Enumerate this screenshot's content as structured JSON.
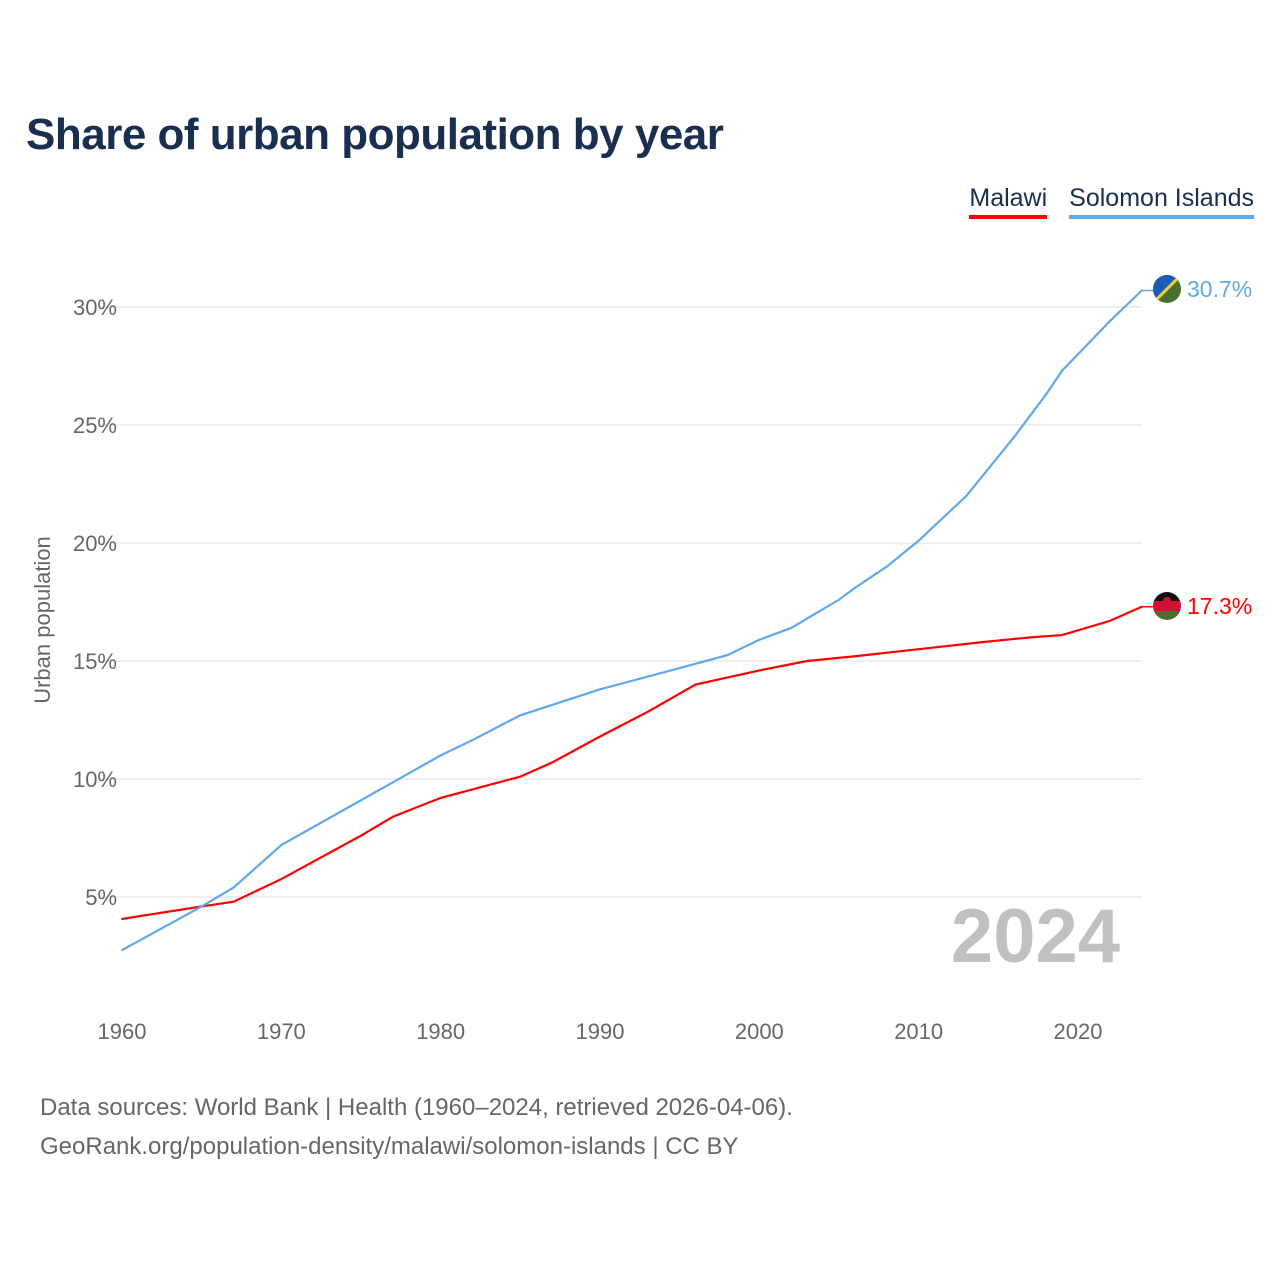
{
  "chart_data": {
    "type": "line",
    "title": "Share of urban population by year",
    "xlabel": "",
    "ylabel": "Urban population",
    "xlim": [
      1960,
      2024
    ],
    "ylim": [
      0,
      32
    ],
    "x_ticks": [
      "1960",
      "1970",
      "1980",
      "1990",
      "2000",
      "2010",
      "2020"
    ],
    "y_ticks": [
      "5%",
      "10%",
      "15%",
      "20%",
      "25%",
      "30%"
    ],
    "y_tick_values": [
      5,
      10,
      15,
      20,
      25,
      30
    ],
    "grid": true,
    "legend_position": "top-right",
    "year_label": "2024",
    "series": [
      {
        "name": "Malawi",
        "color": "#ff0000",
        "end_label": "17.3%",
        "x": [
          1960,
          1965,
          1967,
          1970,
          1975,
          1977,
          1980,
          1985,
          1987,
          1990,
          1993,
          1996,
          2000,
          2003,
          2006,
          2010,
          2014,
          2017,
          2019,
          2022,
          2024
        ],
        "y": [
          4.07,
          4.6,
          4.8,
          5.76,
          7.6,
          8.4,
          9.2,
          10.1,
          10.7,
          11.8,
          12.85,
          14.0,
          14.6,
          15.0,
          15.2,
          15.5,
          15.8,
          16.0,
          16.1,
          16.7,
          17.3
        ]
      },
      {
        "name": "Solomon Islands",
        "color": "#5fa8ee",
        "end_label": "30.7%",
        "x": [
          1960,
          1965,
          1967,
          1970,
          1975,
          1980,
          1982,
          1985,
          1990,
          1995,
          1998,
          2000,
          2002,
          2005,
          2006,
          2008,
          2010,
          2013,
          2016,
          2018,
          2019,
          2022,
          2024
        ],
        "y": [
          2.75,
          4.6,
          5.4,
          7.2,
          9.1,
          11.0,
          11.65,
          12.7,
          13.8,
          14.7,
          15.25,
          15.9,
          16.4,
          17.6,
          18.1,
          19.0,
          20.1,
          22.0,
          24.5,
          26.3,
          27.3,
          29.4,
          30.7
        ]
      }
    ]
  },
  "footer": {
    "line1": "Data sources: World Bank | Health (1960–2024, retrieved 2026-04-06).",
    "line2": "GeoRank.org/population-density/malawi/solomon-islands | CC BY"
  }
}
